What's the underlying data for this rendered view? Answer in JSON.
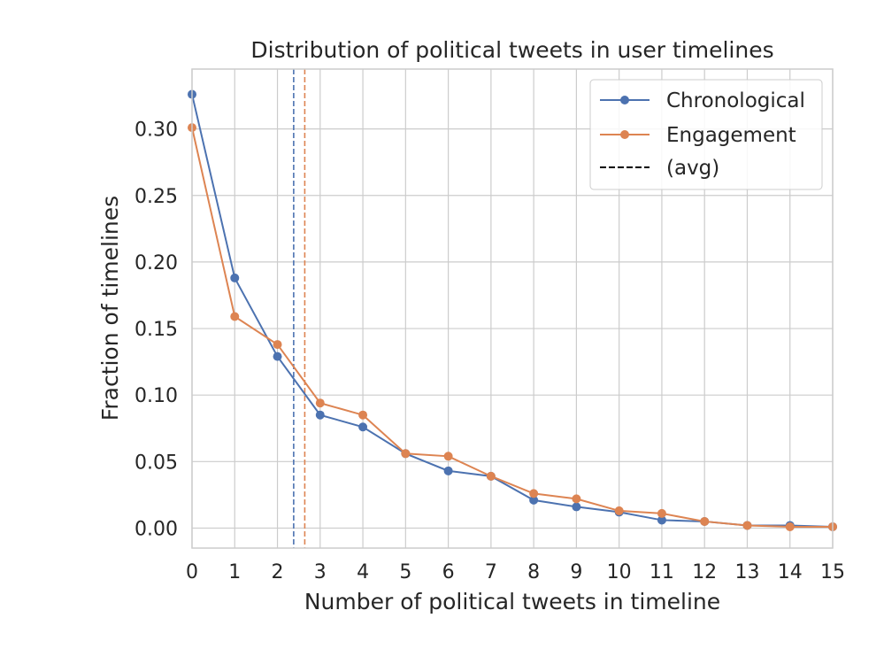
{
  "chart_data": {
    "type": "line",
    "title": "Distribution of political tweets in user timelines",
    "xlabel": "Number of political tweets in timeline",
    "ylabel": "Fraction of timelines",
    "xlim": [
      0,
      15
    ],
    "ylim": [
      -0.015,
      0.345
    ],
    "xticks": [
      0,
      1,
      2,
      3,
      4,
      5,
      6,
      7,
      8,
      9,
      10,
      11,
      12,
      13,
      14,
      15
    ],
    "xtick_labels": [
      "0",
      "1",
      "2",
      "3",
      "4",
      "5",
      "6",
      "7",
      "8",
      "9",
      "10",
      "11",
      "12",
      "13",
      "14",
      "15"
    ],
    "yticks": [
      0.0,
      0.05,
      0.1,
      0.15,
      0.2,
      0.25,
      0.3
    ],
    "ytick_labels": [
      "0.00",
      "0.05",
      "0.10",
      "0.15",
      "0.20",
      "0.25",
      "0.30"
    ],
    "grid": true,
    "legend_position": "top-right",
    "x": [
      0,
      1,
      2,
      3,
      4,
      5,
      6,
      7,
      8,
      9,
      10,
      11,
      12,
      13,
      14,
      15
    ],
    "series": [
      {
        "name": "Chronological",
        "color": "#4c72b0",
        "values": [
          0.326,
          0.188,
          0.129,
          0.085,
          0.076,
          0.056,
          0.043,
          0.039,
          0.021,
          0.016,
          0.012,
          0.006,
          0.005,
          0.002,
          0.002,
          0.001
        ],
        "avg": 2.38
      },
      {
        "name": "Engagement",
        "color": "#dd8452",
        "values": [
          0.301,
          0.159,
          0.138,
          0.094,
          0.085,
          0.056,
          0.054,
          0.039,
          0.026,
          0.022,
          0.013,
          0.011,
          0.005,
          0.002,
          0.001,
          0.001
        ],
        "avg": 2.64
      }
    ],
    "legend_avg_label": "(avg)",
    "legend_avg_color": "#000000"
  }
}
